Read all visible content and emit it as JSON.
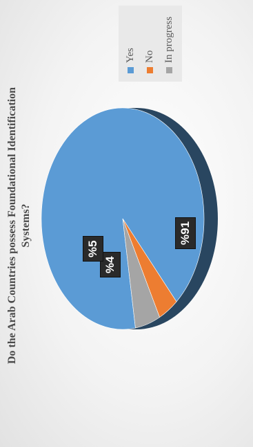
{
  "chart_data": {
    "type": "pie",
    "title_lines": [
      "Do the Arab Countries possess Foundational Identification",
      "Systems?"
    ],
    "categories": [
      "Yes",
      "No",
      "In progress"
    ],
    "values": [
      91,
      4,
      5
    ],
    "data_labels": [
      "%91",
      "%4",
      "%5"
    ],
    "colors": [
      "#5b9bd5",
      "#ed7d31",
      "#a5a5a5"
    ],
    "legend_position": "right",
    "style": "3d"
  }
}
